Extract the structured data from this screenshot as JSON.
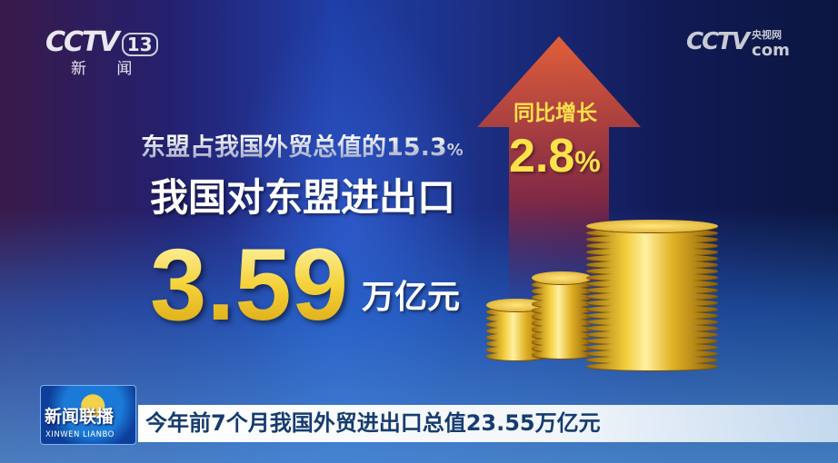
{
  "channel_logo": {
    "brand": "CCTV",
    "number": "13",
    "name": "新 闻"
  },
  "site_logo": {
    "brand": "CCTV",
    "suffix": "com",
    "cn": "央视网"
  },
  "infographic": {
    "share_text": "东盟占我国外贸总值的15.3",
    "share_pct": "%",
    "title": "我国对东盟进出口",
    "value": "3.59",
    "unit": "万亿元",
    "yoy_label": "同比增长",
    "yoy_value": "2.8",
    "yoy_pct": "%",
    "colors": {
      "value": "#f5d23a",
      "arrow": "#c0392b",
      "text": "#ffffff"
    }
  },
  "program_logo": {
    "cn": "新闻联播",
    "en": "XINWEN LIANBO"
  },
  "ticker": {
    "text": "今年前7个月我国外贸进出口总值23.55万亿元"
  }
}
